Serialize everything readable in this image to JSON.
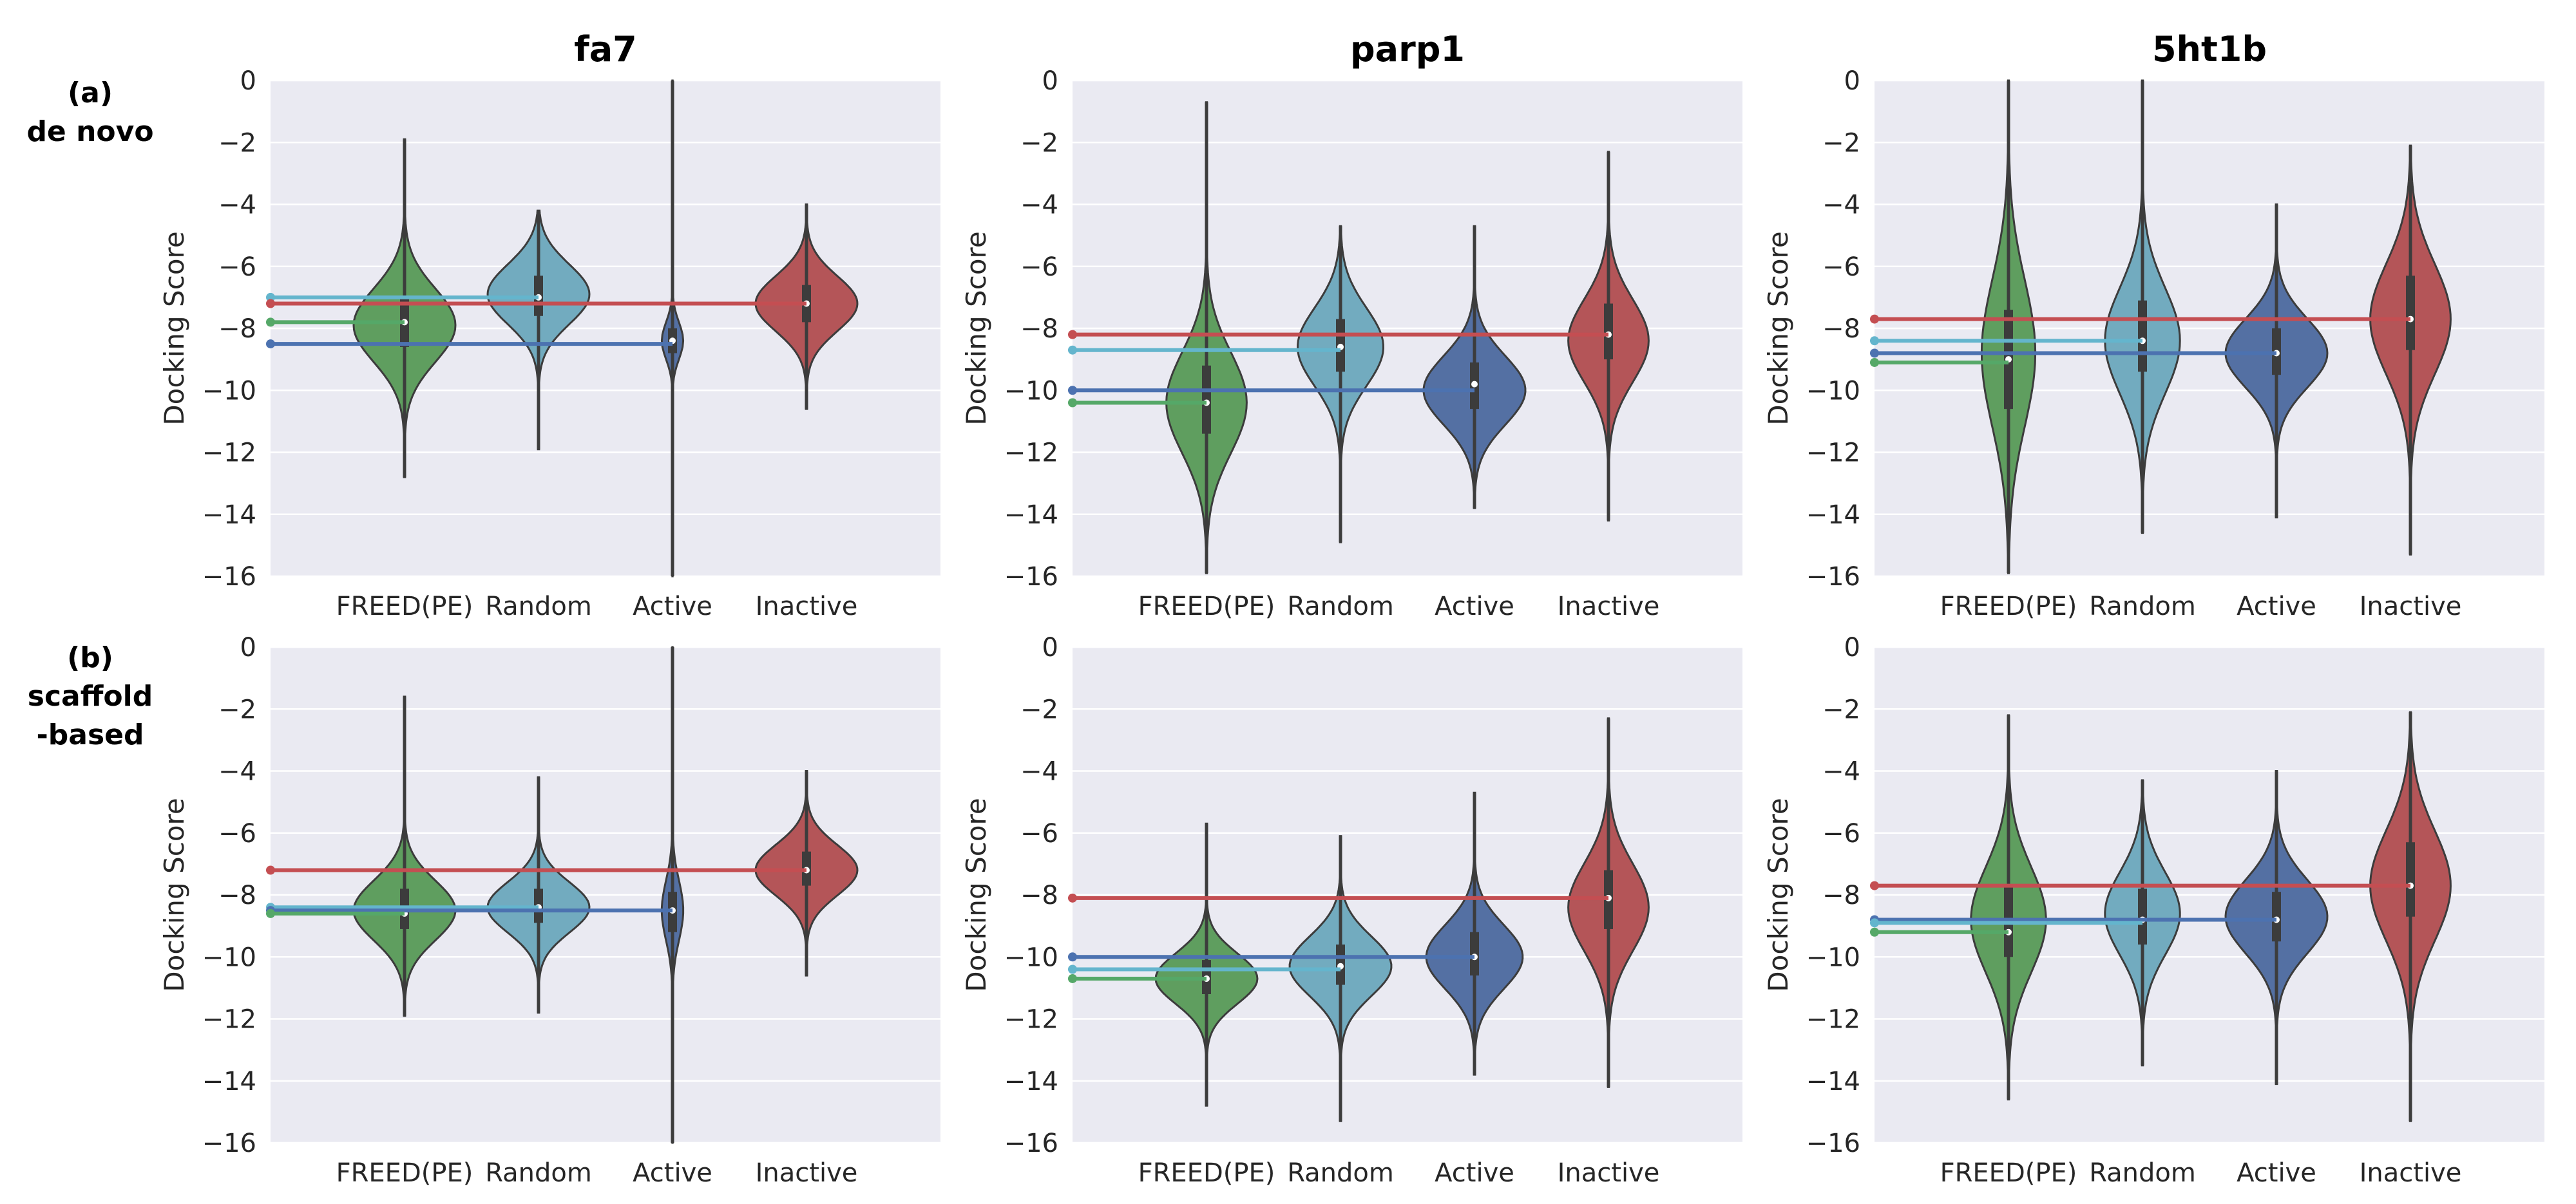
{
  "figure": {
    "row_labels": [
      {
        "tag": "(a)",
        "line1": "de novo",
        "line2": ""
      },
      {
        "tag": "(b)",
        "line1": "scaffold",
        "line2": "-based"
      }
    ],
    "colors": {
      "FREED(PE)": "#5f9e5f",
      "Random": "#72abbf",
      "Active": "#5470a3",
      "Inactive": "#b45558",
      "background": "#eaeaf2",
      "grid": "#ffffff",
      "line_freed": "#55a868",
      "line_random": "#64b5cd",
      "line_active": "#4c72b0",
      "line_inactive": "#c44e52"
    }
  },
  "chart_data": [
    {
      "type": "violin",
      "title": "fa7",
      "row": "(a) de novo",
      "categories": [
        "FREED(PE)",
        "Random",
        "Active",
        "Inactive"
      ],
      "ylabel": "Docking Score",
      "ylim": [
        -16,
        0
      ],
      "yticks": [
        "0",
        "−2",
        "−4",
        "−6",
        "−8",
        "−10",
        "−12",
        "−14",
        "−16"
      ],
      "violins": [
        {
          "name": "FREED(PE)",
          "min": -12.8,
          "q1": -8.6,
          "median": -7.8,
          "q3": -7.0,
          "max": -1.9,
          "mode": -7.9,
          "width": 0.95
        },
        {
          "name": "Random",
          "min": -11.9,
          "q1": -7.6,
          "median": -7.0,
          "q3": -6.3,
          "max": -4.2,
          "mode": -6.9,
          "width": 0.95
        },
        {
          "name": "Active",
          "min": -16.0,
          "q1": -8.8,
          "median": -8.4,
          "q3": -8.0,
          "max": 0,
          "mode": -8.4,
          "width": 0.2
        },
        {
          "name": "Inactive",
          "min": -10.6,
          "q1": -7.8,
          "median": -7.2,
          "q3": -6.6,
          "max": -4.0,
          "mode": -7.2,
          "width": 0.95
        }
      ],
      "hlines": [
        {
          "name": "Random",
          "value": -7.0
        },
        {
          "name": "Inactive",
          "value": -7.2
        },
        {
          "name": "FREED(PE)",
          "value": -7.8
        },
        {
          "name": "Active",
          "value": -8.5
        }
      ]
    },
    {
      "type": "violin",
      "title": "parp1",
      "row": "(a) de novo",
      "categories": [
        "FREED(PE)",
        "Random",
        "Active",
        "Inactive"
      ],
      "ylabel": "Docking Score",
      "ylim": [
        -16,
        0
      ],
      "yticks": [
        "0",
        "−2",
        "−4",
        "−6",
        "−8",
        "−10",
        "−12",
        "−14",
        "−16"
      ],
      "violins": [
        {
          "name": "FREED(PE)",
          "min": -15.9,
          "q1": -11.4,
          "median": -10.4,
          "q3": -9.2,
          "max": -0.7,
          "mode": -10.4,
          "width": 0.75
        },
        {
          "name": "Random",
          "min": -14.9,
          "q1": -9.4,
          "median": -8.6,
          "q3": -7.7,
          "max": -4.7,
          "mode": -8.6,
          "width": 0.8
        },
        {
          "name": "Active",
          "min": -13.8,
          "q1": -10.6,
          "median": -9.8,
          "q3": -9.1,
          "max": -4.7,
          "mode": -10.0,
          "width": 0.95
        },
        {
          "name": "Inactive",
          "min": -14.2,
          "q1": -9.0,
          "median": -8.2,
          "q3": -7.2,
          "max": -2.3,
          "mode": -8.4,
          "width": 0.75
        }
      ],
      "hlines": [
        {
          "name": "Inactive",
          "value": -8.2
        },
        {
          "name": "Random",
          "value": -8.7
        },
        {
          "name": "Active",
          "value": -10.0
        },
        {
          "name": "FREED(PE)",
          "value": -10.4
        }
      ]
    },
    {
      "type": "violin",
      "title": "5ht1b",
      "row": "(a) de novo",
      "categories": [
        "FREED(PE)",
        "Random",
        "Active",
        "Inactive"
      ],
      "ylabel": "Docking Score",
      "ylim": [
        -16,
        0
      ],
      "yticks": [
        "0",
        "−2",
        "−4",
        "−6",
        "−8",
        "−10",
        "−12",
        "−14",
        "−16"
      ],
      "violins": [
        {
          "name": "FREED(PE)",
          "min": -15.9,
          "q1": -10.6,
          "median": -9.0,
          "q3": -7.4,
          "max": 0,
          "mode": -8.8,
          "width": 0.5
        },
        {
          "name": "Random",
          "min": -14.6,
          "q1": -9.4,
          "median": -8.4,
          "q3": -7.1,
          "max": 0,
          "mode": -8.4,
          "width": 0.7
        },
        {
          "name": "Active",
          "min": -14.1,
          "q1": -9.5,
          "median": -8.8,
          "q3": -8.0,
          "max": -4.0,
          "mode": -8.8,
          "width": 0.95
        },
        {
          "name": "Inactive",
          "min": -15.3,
          "q1": -8.7,
          "median": -7.7,
          "q3": -6.3,
          "max": -2.1,
          "mode": -7.7,
          "width": 0.75
        }
      ],
      "hlines": [
        {
          "name": "Inactive",
          "value": -7.7
        },
        {
          "name": "Random",
          "value": -8.4
        },
        {
          "name": "Active",
          "value": -8.8
        },
        {
          "name": "FREED(PE)",
          "value": -9.1
        }
      ]
    },
    {
      "type": "violin",
      "title": "",
      "row": "(b) scaffold-based",
      "categories": [
        "FREED(PE)",
        "Random",
        "Active",
        "Inactive"
      ],
      "ylabel": "Docking Score",
      "ylim": [
        -16,
        0
      ],
      "yticks": [
        "0",
        "−2",
        "−4",
        "−6",
        "−8",
        "−10",
        "−12",
        "−14",
        "−16"
      ],
      "violins": [
        {
          "name": "FREED(PE)",
          "min": -11.9,
          "q1": -9.1,
          "median": -8.6,
          "q3": -7.8,
          "max": -1.6,
          "mode": -8.5,
          "width": 0.95
        },
        {
          "name": "Random",
          "min": -11.8,
          "q1": -8.9,
          "median": -8.4,
          "q3": -7.8,
          "max": -4.2,
          "mode": -8.4,
          "width": 0.95
        },
        {
          "name": "Active",
          "min": -16.0,
          "q1": -9.2,
          "median": -8.5,
          "q3": -7.9,
          "max": 0,
          "mode": -8.5,
          "width": 0.2
        },
        {
          "name": "Inactive",
          "min": -10.6,
          "q1": -7.7,
          "median": -7.2,
          "q3": -6.6,
          "max": -4.0,
          "mode": -7.2,
          "width": 0.95
        }
      ],
      "hlines": [
        {
          "name": "Inactive",
          "value": -7.2
        },
        {
          "name": "Random",
          "value": -8.4
        },
        {
          "name": "Active",
          "value": -8.5
        },
        {
          "name": "FREED(PE)",
          "value": -8.6
        }
      ]
    },
    {
      "type": "violin",
      "title": "",
      "row": "(b) scaffold-based",
      "categories": [
        "FREED(PE)",
        "Random",
        "Active",
        "Inactive"
      ],
      "ylabel": "Docking Score",
      "ylim": [
        -16,
        0
      ],
      "yticks": [
        "0",
        "−2",
        "−4",
        "−6",
        "−8",
        "−10",
        "−12",
        "−14",
        "−16"
      ],
      "violins": [
        {
          "name": "FREED(PE)",
          "min": -14.8,
          "q1": -11.2,
          "median": -10.7,
          "q3": -10.1,
          "max": -5.7,
          "mode": -10.7,
          "width": 0.95
        },
        {
          "name": "Random",
          "min": -15.3,
          "q1": -10.9,
          "median": -10.3,
          "q3": -9.6,
          "max": -6.1,
          "mode": -10.3,
          "width": 0.95
        },
        {
          "name": "Active",
          "min": -13.8,
          "q1": -10.6,
          "median": -10.0,
          "q3": -9.2,
          "max": -4.7,
          "mode": -10.0,
          "width": 0.9
        },
        {
          "name": "Inactive",
          "min": -14.2,
          "q1": -9.1,
          "median": -8.1,
          "q3": -7.2,
          "max": -2.3,
          "mode": -8.4,
          "width": 0.75
        }
      ],
      "hlines": [
        {
          "name": "Inactive",
          "value": -8.1
        },
        {
          "name": "Active",
          "value": -10.0
        },
        {
          "name": "Random",
          "value": -10.4
        },
        {
          "name": "FREED(PE)",
          "value": -10.7
        }
      ]
    },
    {
      "type": "violin",
      "title": "",
      "row": "(b) scaffold-based",
      "categories": [
        "FREED(PE)",
        "Random",
        "Active",
        "Inactive"
      ],
      "ylabel": "Docking Score",
      "ylim": [
        -16,
        0
      ],
      "yticks": [
        "0",
        "−2",
        "−4",
        "−6",
        "−8",
        "−10",
        "−12",
        "−14",
        "−16"
      ],
      "violins": [
        {
          "name": "FREED(PE)",
          "min": -14.6,
          "q1": -10.0,
          "median": -9.2,
          "q3": -7.7,
          "max": -2.2,
          "mode": -8.8,
          "width": 0.7
        },
        {
          "name": "Random",
          "min": -13.5,
          "q1": -9.6,
          "median": -8.8,
          "q3": -7.8,
          "max": -4.3,
          "mode": -8.6,
          "width": 0.7
        },
        {
          "name": "Active",
          "min": -14.1,
          "q1": -9.5,
          "median": -8.8,
          "q3": -7.9,
          "max": -4.0,
          "mode": -8.7,
          "width": 0.95
        },
        {
          "name": "Inactive",
          "min": -15.3,
          "q1": -8.7,
          "median": -7.7,
          "q3": -6.3,
          "max": -2.1,
          "mode": -7.7,
          "width": 0.75
        }
      ],
      "hlines": [
        {
          "name": "Inactive",
          "value": -7.7
        },
        {
          "name": "Active",
          "value": -8.8
        },
        {
          "name": "Random",
          "value": -8.9
        },
        {
          "name": "FREED(PE)",
          "value": -9.2
        }
      ]
    }
  ]
}
